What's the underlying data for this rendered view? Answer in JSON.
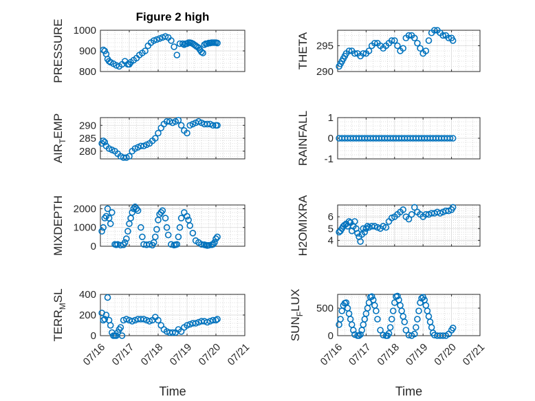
{
  "figure_title": "Figure 2 high",
  "colors": {
    "marker": "#0072BD",
    "axis": "#262626",
    "grid": "#bdbdbd"
  },
  "chart_data": [
    {
      "type": "scatter",
      "title": "Figure 2 high",
      "ylabel": "PRESSURE",
      "xlabel": "",
      "ylim": [
        800,
        1000
      ],
      "yticks": [
        "800",
        "900",
        "1000"
      ],
      "ytick_values": [
        800,
        900,
        1000
      ],
      "xlim": [
        "07/16",
        "07/21"
      ],
      "xticks": [
        "07/16",
        "07/17",
        "07/18",
        "07/19",
        "07/20",
        "07/21"
      ],
      "grid": true,
      "minor_grid": true,
      "x": [
        0.1,
        0.15,
        0.2,
        0.25,
        0.3,
        0.35,
        0.45,
        0.55,
        0.65,
        0.75,
        0.85,
        0.95,
        1.0,
        1.05,
        1.15,
        1.25,
        1.35,
        1.45,
        1.55,
        1.65,
        1.75,
        1.85,
        1.95,
        2.05,
        2.15,
        2.25,
        2.35,
        2.45,
        2.55,
        2.65,
        2.75,
        2.85,
        2.9,
        2.95,
        3.0,
        3.05,
        3.1,
        3.15,
        3.2,
        3.25,
        3.3,
        3.35,
        3.4,
        3.45,
        3.5,
        3.55,
        3.6,
        3.65,
        3.7,
        3.75,
        3.8,
        3.85,
        3.9,
        3.95,
        4.0,
        4.05
      ],
      "y": [
        905,
        900,
        885,
        860,
        850,
        845,
        838,
        830,
        825,
        835,
        850,
        835,
        835,
        845,
        855,
        865,
        880,
        890,
        900,
        925,
        940,
        950,
        955,
        960,
        965,
        970,
        965,
        950,
        920,
        880,
        935,
        935,
        930,
        935,
        935,
        940,
        940,
        938,
        935,
        930,
        925,
        920,
        915,
        905,
        895,
        890,
        930,
        935,
        935,
        938,
        938,
        940,
        940,
        940,
        940,
        938
      ]
    },
    {
      "type": "scatter",
      "title": "",
      "ylabel": "THETA",
      "xlabel": "",
      "ylim": [
        290,
        298
      ],
      "yticks": [
        "290",
        "295"
      ],
      "ytick_values": [
        290,
        295
      ],
      "xlim": [
        "07/16",
        "07/21"
      ],
      "xticks": [
        "07/16",
        "07/17",
        "07/18",
        "07/19",
        "07/20",
        "07/21"
      ],
      "grid": true,
      "minor_grid": true,
      "x": [
        0.05,
        0.1,
        0.15,
        0.2,
        0.25,
        0.3,
        0.4,
        0.5,
        0.6,
        0.7,
        0.8,
        0.9,
        1.0,
        1.1,
        1.2,
        1.3,
        1.4,
        1.5,
        1.6,
        1.7,
        1.8,
        1.9,
        2.0,
        2.1,
        2.2,
        2.3,
        2.4,
        2.5,
        2.6,
        2.7,
        2.8,
        2.9,
        3.0,
        3.1,
        3.2,
        3.3,
        3.4,
        3.5,
        3.6,
        3.7,
        3.8,
        3.9,
        4.0,
        4.05
      ],
      "y": [
        291,
        291.5,
        292,
        292.5,
        293,
        293.5,
        294,
        294,
        293.5,
        293.5,
        293,
        293.5,
        293.5,
        294,
        295,
        295.5,
        295.5,
        295,
        294.5,
        295,
        295.5,
        296,
        296,
        295,
        294,
        294.5,
        296.5,
        297,
        297,
        296.5,
        295.5,
        294.5,
        293.5,
        294,
        296,
        297.5,
        298,
        298,
        297.5,
        297,
        297,
        296.5,
        296.5,
        296
      ]
    },
    {
      "type": "scatter",
      "title": "",
      "ylabel": "AIR_TEMP",
      "xlabel": "",
      "ylim": [
        277,
        293
      ],
      "yticks": [
        "280",
        "285",
        "290"
      ],
      "ytick_values": [
        280,
        285,
        290
      ],
      "xlim": [
        "07/16",
        "07/21"
      ],
      "xticks": [
        "07/16",
        "07/17",
        "07/18",
        "07/19",
        "07/20",
        "07/21"
      ],
      "grid": true,
      "minor_grid": true,
      "x": [
        0.05,
        0.1,
        0.15,
        0.2,
        0.3,
        0.4,
        0.5,
        0.6,
        0.7,
        0.8,
        0.9,
        1.0,
        1.1,
        1.2,
        1.3,
        1.4,
        1.5,
        1.6,
        1.7,
        1.8,
        1.9,
        2.0,
        2.1,
        2.2,
        2.3,
        2.4,
        2.5,
        2.6,
        2.7,
        2.8,
        2.9,
        3.0,
        3.1,
        3.2,
        3.3,
        3.4,
        3.5,
        3.6,
        3.7,
        3.8,
        3.9,
        4.0,
        4.05
      ],
      "y": [
        283,
        284,
        283.5,
        282,
        281,
        280.5,
        280,
        279,
        278,
        277.5,
        277.5,
        278,
        280,
        281,
        281.5,
        282,
        282,
        282.5,
        283,
        284,
        285,
        287,
        289,
        290.5,
        291.5,
        291.5,
        291,
        291.5,
        292,
        290,
        288,
        287,
        290,
        290.5,
        291,
        291.5,
        291,
        290.5,
        290.5,
        290.5,
        290,
        290,
        290
      ]
    },
    {
      "type": "scatter",
      "title": "",
      "ylabel": "RAINFALL",
      "xlabel": "",
      "ylim": [
        -1,
        1
      ],
      "yticks": [
        "-1",
        "0",
        "1"
      ],
      "ytick_values": [
        -1,
        0,
        1
      ],
      "xlim": [
        "07/16",
        "07/21"
      ],
      "xticks": [
        "07/16",
        "07/17",
        "07/18",
        "07/19",
        "07/20",
        "07/21"
      ],
      "grid": true,
      "minor_grid": true,
      "x": [
        0.05,
        0.15,
        0.25,
        0.35,
        0.45,
        0.55,
        0.65,
        0.75,
        0.85,
        0.95,
        1.05,
        1.15,
        1.25,
        1.35,
        1.45,
        1.55,
        1.65,
        1.75,
        1.85,
        1.95,
        2.05,
        2.15,
        2.25,
        2.35,
        2.45,
        2.55,
        2.65,
        2.75,
        2.85,
        2.95,
        3.05,
        3.15,
        3.25,
        3.35,
        3.45,
        3.55,
        3.65,
        3.75,
        3.85,
        3.95,
        4.05
      ],
      "y": [
        0,
        0,
        0,
        0,
        0,
        0,
        0,
        0,
        0,
        0,
        0,
        0,
        0,
        0,
        0,
        0,
        0,
        0,
        0,
        0,
        0,
        0,
        0,
        0,
        0,
        0,
        0,
        0,
        0,
        0,
        0,
        0,
        0,
        0,
        0,
        0,
        0,
        0,
        0,
        0,
        0
      ]
    },
    {
      "type": "scatter",
      "title": "",
      "ylabel": "MIXDEPTH",
      "xlabel": "",
      "ylim": [
        0,
        2200
      ],
      "yticks": [
        "0",
        "1000",
        "2000"
      ],
      "ytick_values": [
        0,
        1000,
        2000
      ],
      "xlim": [
        "07/16",
        "07/21"
      ],
      "xticks": [
        "07/16",
        "07/17",
        "07/18",
        "07/19",
        "07/20",
        "07/21"
      ],
      "grid": true,
      "minor_grid": true,
      "x": [
        0.05,
        0.1,
        0.15,
        0.2,
        0.25,
        0.3,
        0.35,
        0.4,
        0.5,
        0.55,
        0.6,
        0.7,
        0.8,
        0.85,
        0.9,
        0.95,
        1.0,
        1.05,
        1.1,
        1.15,
        1.2,
        1.25,
        1.3,
        1.4,
        1.45,
        1.5,
        1.6,
        1.7,
        1.8,
        1.85,
        1.9,
        1.95,
        2.0,
        2.05,
        2.1,
        2.15,
        2.25,
        2.3,
        2.35,
        2.45,
        2.55,
        2.6,
        2.65,
        2.7,
        2.75,
        2.8,
        2.9,
        3.0,
        3.05,
        3.1,
        3.2,
        3.3,
        3.4,
        3.5,
        3.6,
        3.65,
        3.7,
        3.75,
        3.85,
        3.9,
        3.95,
        4.0,
        4.05
      ],
      "y": [
        800,
        1000,
        1500,
        1600,
        2000,
        1500,
        1200,
        1800,
        100,
        80,
        100,
        60,
        80,
        200,
        400,
        800,
        1200,
        1500,
        1800,
        2000,
        2100,
        2000,
        1900,
        1000,
        500,
        100,
        80,
        100,
        60,
        200,
        500,
        900,
        1400,
        1700,
        1800,
        1900,
        1500,
        1000,
        600,
        100,
        60,
        80,
        100,
        500,
        1000,
        1500,
        1800,
        1600,
        1400,
        1100,
        700,
        300,
        200,
        100,
        80,
        60,
        40,
        50,
        80,
        100,
        200,
        400,
        500
      ]
    },
    {
      "type": "scatter",
      "title": "",
      "ylabel": "H2OMIXRA",
      "xlabel": "",
      "ylim": [
        3.5,
        7
      ],
      "yticks": [
        "4",
        "5",
        "6"
      ],
      "ytick_values": [
        4,
        5,
        6
      ],
      "xlim": [
        "07/16",
        "07/21"
      ],
      "xticks": [
        "07/16",
        "07/17",
        "07/18",
        "07/19",
        "07/20",
        "07/21"
      ],
      "grid": true,
      "minor_grid": true,
      "x": [
        0.05,
        0.1,
        0.15,
        0.2,
        0.25,
        0.3,
        0.35,
        0.4,
        0.45,
        0.5,
        0.55,
        0.6,
        0.65,
        0.7,
        0.75,
        0.8,
        0.85,
        0.9,
        0.95,
        1.0,
        1.05,
        1.1,
        1.2,
        1.3,
        1.4,
        1.5,
        1.6,
        1.7,
        1.8,
        1.9,
        2.0,
        2.1,
        2.2,
        2.3,
        2.4,
        2.5,
        2.6,
        2.7,
        2.8,
        2.9,
        3.0,
        3.1,
        3.2,
        3.3,
        3.4,
        3.5,
        3.6,
        3.7,
        3.8,
        3.9,
        4.0,
        4.05
      ],
      "y": [
        4.7,
        4.8,
        5.0,
        5.2,
        5.3,
        5.4,
        5.2,
        5.6,
        5.5,
        4.8,
        5.2,
        5.6,
        5.0,
        4.6,
        4.3,
        3.9,
        4.5,
        5.0,
        4.7,
        5.0,
        5.2,
        5.1,
        5.2,
        5.2,
        5.1,
        5.0,
        5.2,
        5.1,
        5.6,
        5.9,
        6.0,
        6.2,
        6.4,
        6.6,
        6.0,
        5.8,
        6.2,
        6.8,
        6.4,
        6.2,
        6.0,
        6.2,
        6.2,
        6.3,
        6.3,
        6.4,
        6.3,
        6.4,
        6.5,
        6.5,
        6.6,
        6.8
      ]
    },
    {
      "type": "scatter",
      "title": "",
      "ylabel": "TERR_MSL",
      "xlabel": "Time",
      "ylim": [
        0,
        400
      ],
      "yticks": [
        "0",
        "200",
        "400"
      ],
      "ytick_values": [
        0,
        200,
        400
      ],
      "xlim": [
        "07/16",
        "07/21"
      ],
      "xticks": [
        "07/16",
        "07/17",
        "07/18",
        "07/19",
        "07/20",
        "07/21"
      ],
      "grid": true,
      "minor_grid": true,
      "x": [
        0.05,
        0.1,
        0.15,
        0.2,
        0.25,
        0.3,
        0.35,
        0.4,
        0.45,
        0.5,
        0.55,
        0.6,
        0.65,
        0.7,
        0.75,
        0.8,
        0.9,
        1.0,
        1.1,
        1.2,
        1.3,
        1.4,
        1.5,
        1.6,
        1.7,
        1.8,
        1.9,
        2.0,
        2.1,
        2.2,
        2.3,
        2.4,
        2.5,
        2.6,
        2.7,
        2.8,
        2.9,
        3.0,
        3.1,
        3.2,
        3.3,
        3.4,
        3.5,
        3.6,
        3.7,
        3.8,
        3.9,
        4.0,
        4.05
      ],
      "y": [
        220,
        150,
        160,
        200,
        370,
        150,
        100,
        30,
        0,
        0,
        0,
        30,
        60,
        80,
        0,
        150,
        160,
        150,
        140,
        150,
        160,
        160,
        160,
        150,
        140,
        150,
        180,
        150,
        100,
        60,
        40,
        30,
        30,
        30,
        60,
        40,
        80,
        100,
        110,
        120,
        120,
        130,
        140,
        140,
        130,
        140,
        150,
        150,
        160
      ]
    },
    {
      "type": "scatter",
      "title": "",
      "ylabel": "SUN_FLUX",
      "xlabel": "Time",
      "ylim": [
        0,
        750
      ],
      "yticks": [
        "0",
        "500"
      ],
      "ytick_values": [
        0,
        500
      ],
      "xlim": [
        "07/16",
        "07/21"
      ],
      "xticks": [
        "07/16",
        "07/17",
        "07/18",
        "07/19",
        "07/20",
        "07/21"
      ],
      "grid": true,
      "minor_grid": true,
      "x": [
        0.05,
        0.1,
        0.15,
        0.2,
        0.25,
        0.3,
        0.35,
        0.4,
        0.45,
        0.5,
        0.55,
        0.6,
        0.7,
        0.75,
        0.8,
        0.85,
        0.9,
        0.95,
        1.0,
        1.05,
        1.1,
        1.15,
        1.2,
        1.25,
        1.3,
        1.35,
        1.4,
        1.5,
        1.6,
        1.7,
        1.75,
        1.8,
        1.85,
        1.9,
        1.95,
        2.0,
        2.05,
        2.1,
        2.15,
        2.2,
        2.25,
        2.3,
        2.35,
        2.4,
        2.5,
        2.6,
        2.7,
        2.75,
        2.8,
        2.85,
        2.9,
        2.95,
        3.0,
        3.05,
        3.1,
        3.15,
        3.2,
        3.25,
        3.3,
        3.35,
        3.4,
        3.5,
        3.6,
        3.7,
        3.8,
        3.9,
        4.0,
        4.05
      ],
      "y": [
        200,
        300,
        450,
        550,
        590,
        600,
        500,
        400,
        300,
        200,
        100,
        20,
        0,
        0,
        20,
        100,
        200,
        300,
        400,
        500,
        600,
        700,
        710,
        650,
        550,
        450,
        300,
        100,
        10,
        0,
        0,
        40,
        150,
        300,
        450,
        600,
        710,
        720,
        650,
        550,
        450,
        350,
        250,
        100,
        10,
        0,
        30,
        150,
        300,
        450,
        600,
        680,
        700,
        650,
        550,
        450,
        350,
        250,
        150,
        50,
        10,
        0,
        0,
        0,
        0,
        30,
        100,
        140
      ]
    }
  ]
}
